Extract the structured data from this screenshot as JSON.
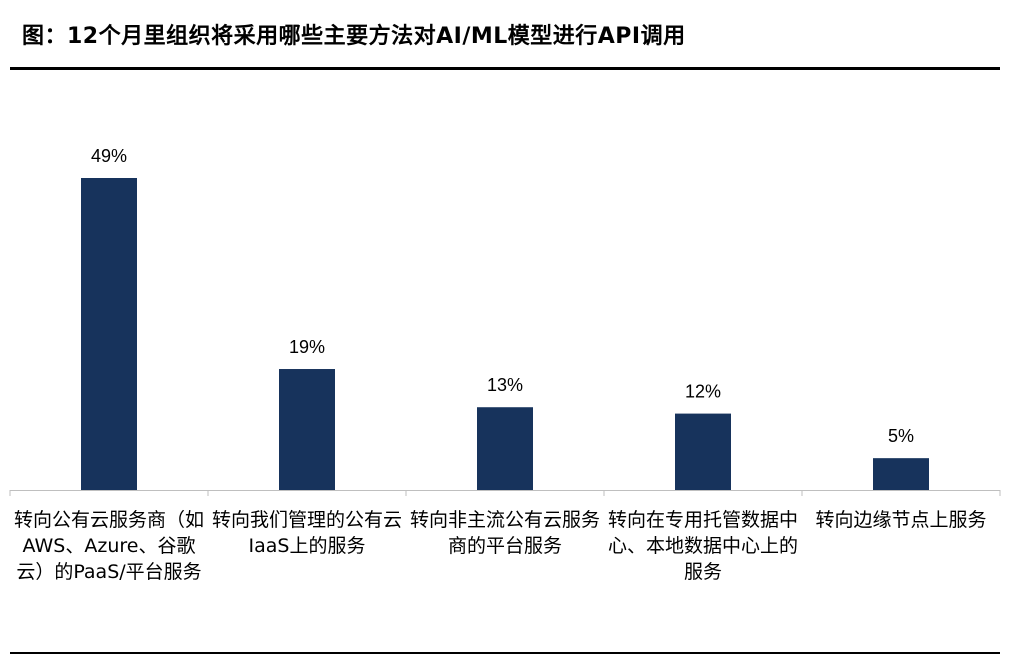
{
  "title": "图：12个月里组织将采用哪些主要方法对AI/ML模型进行API调用",
  "chart_data": {
    "type": "bar",
    "categories": [
      "转向公有云服务商（如 AWS、Azure、谷歌云）的PaaS/平台服务",
      "转向我们管理的公有云IaaS上的服务",
      "转向非主流公有云服务商的平台服务",
      "转向在专用托管数据中心、本地数据中心上的服务",
      "转向边缘节点上服务"
    ],
    "values": [
      49,
      19,
      13,
      12,
      5
    ],
    "data_labels": [
      "49%",
      "19%",
      "13%",
      "12%",
      "5%"
    ],
    "ylim": [
      0,
      55
    ],
    "grid": false,
    "legend": "none",
    "bar_color": "#17335c"
  }
}
